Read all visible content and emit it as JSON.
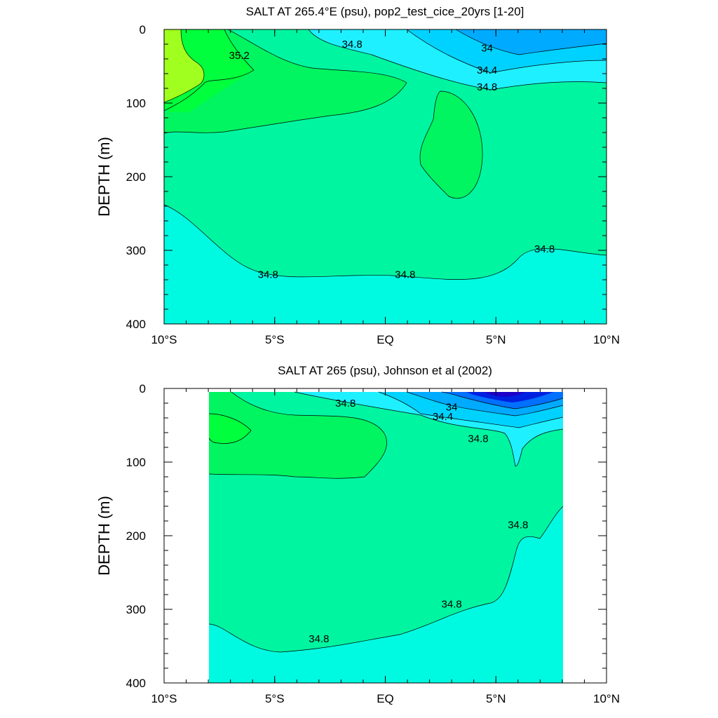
{
  "chart_data": [
    {
      "type": "contour",
      "title": "SALT AT 265.4°E (psu), pop2_test_cice_20yrs [1-20]",
      "ylabel": "DEPTH (m)",
      "xlabel": "",
      "xlim": [
        -10,
        10
      ],
      "ylim": [
        400,
        0
      ],
      "x_ticks": [
        {
          "value": -10,
          "label": "10°S"
        },
        {
          "value": -5,
          "label": "5°S"
        },
        {
          "value": 0,
          "label": "EQ"
        },
        {
          "value": 5,
          "label": "5°N"
        },
        {
          "value": 10,
          "label": "10°N"
        }
      ],
      "y_ticks": [
        0,
        100,
        200,
        300,
        400
      ],
      "contour_labels": [
        {
          "text": "35.2",
          "x": -6.6,
          "y": 35
        },
        {
          "text": "34.8",
          "x": -1.5,
          "y": 20
        },
        {
          "text": "34",
          "x": 4.6,
          "y": 25
        },
        {
          "text": "34.4",
          "x": 4.6,
          "y": 55
        },
        {
          "text": "34.8",
          "x": 4.6,
          "y": 78
        },
        {
          "text": "34.8",
          "x": -5.3,
          "y": 333
        },
        {
          "text": "34.8",
          "x": 0.9,
          "y": 333
        },
        {
          "text": "34.8",
          "x": 7.2,
          "y": 298
        }
      ],
      "fill_colors": [
        "#00fae1",
        "#00f5a0",
        "#00f560",
        "#00ff3c",
        "#a0ff1e",
        "#1ef0ff",
        "#00d2ff",
        "#00aaff"
      ]
    },
    {
      "type": "contour",
      "title": "SALT AT 265 (psu), Johnson et al (2002)",
      "ylabel": "DEPTH (m)",
      "xlabel": "",
      "xlim": [
        -10,
        10
      ],
      "ylim": [
        400,
        0
      ],
      "x_ticks": [
        {
          "value": -10,
          "label": "10°S"
        },
        {
          "value": -5,
          "label": "5°S"
        },
        {
          "value": 0,
          "label": "EQ"
        },
        {
          "value": 5,
          "label": "5°N"
        },
        {
          "value": 10,
          "label": "10°N"
        }
      ],
      "y_ticks": [
        0,
        100,
        200,
        300,
        400
      ],
      "data_extent_x": [
        -8,
        8
      ],
      "contour_labels": [
        {
          "text": "34.8",
          "x": -1.8,
          "y": 20
        },
        {
          "text": "34",
          "x": 3.0,
          "y": 25
        },
        {
          "text": "34.4",
          "x": 2.6,
          "y": 38
        },
        {
          "text": "34.8",
          "x": 4.2,
          "y": 68
        },
        {
          "text": "34.8",
          "x": 6.0,
          "y": 185
        },
        {
          "text": "34.8",
          "x": 3.0,
          "y": 293
        },
        {
          "text": "34.8",
          "x": -3.0,
          "y": 340
        }
      ],
      "fill_colors": [
        "#00fae1",
        "#00f5a0",
        "#00f560",
        "#1ef0ff",
        "#00d2ff",
        "#00aaff",
        "#0070ff",
        "#0020e0",
        "#1e00c8"
      ]
    }
  ]
}
